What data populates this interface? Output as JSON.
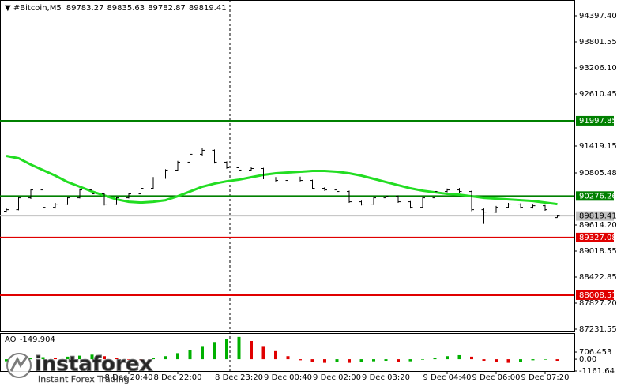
{
  "chart_data": {
    "type": "ohlc",
    "symbol": "#Bitcoin,M5",
    "header_values": [
      89783.27,
      89835.63,
      89782.87,
      89819.41
    ],
    "categories": [
      null,
      null,
      null,
      null,
      null,
      null,
      null,
      null,
      null,
      null,
      "8 Dec 20:40",
      null,
      null,
      null,
      "8 Dec 22:00",
      null,
      null,
      null,
      null,
      "8 Dec 23:20",
      null,
      null,
      null,
      "9 Dec 00:40",
      null,
      null,
      null,
      "9 Dec 02:00",
      null,
      null,
      null,
      "9 Dec 03:20",
      null,
      null,
      null,
      null,
      "9 Dec 04:40",
      null,
      null,
      null,
      "9 Dec 06:00",
      null,
      null,
      null,
      "9 Dec 07:20",
      null
    ],
    "open": [
      89930,
      89964,
      90235,
      90416,
      90018,
      90091,
      90235,
      90416,
      90326,
      90091,
      90235,
      90326,
      90453,
      90688,
      90869,
      91050,
      91231,
      91321,
      91050,
      90923,
      90869,
      90905,
      90688,
      90633,
      90688,
      90633,
      90453,
      90416,
      90380,
      90145,
      90091,
      90235,
      90272,
      90145,
      90018,
      90235,
      90380,
      90416,
      90380,
      89964,
      89910,
      90018,
      90091,
      90018,
      90054,
      89783.27
    ],
    "high": [
      89990,
      90260,
      90440,
      90430,
      90120,
      90260,
      90450,
      90430,
      90340,
      90250,
      90350,
      90470,
      90710,
      90890,
      91080,
      91260,
      91380,
      91340,
      91070,
      90950,
      90940,
      90920,
      90710,
      90710,
      90720,
      90650,
      90480,
      90440,
      90400,
      90170,
      90260,
      90300,
      90290,
      90160,
      90260,
      90400,
      90450,
      90460,
      90400,
      89990,
      90050,
      90120,
      90110,
      90080,
      90070,
      89835.63
    ],
    "low": [
      89900,
      89950,
      90210,
      89990,
      89990,
      90070,
      90220,
      90300,
      90060,
      90070,
      90220,
      90310,
      90440,
      90670,
      90850,
      91030,
      91200,
      91020,
      90900,
      90850,
      90850,
      90660,
      90610,
      90610,
      90610,
      90430,
      90390,
      90360,
      90120,
      90060,
      90070,
      90210,
      90120,
      89990,
      90000,
      90210,
      90360,
      90350,
      89930,
      89640,
      89890,
      90000,
      89990,
      89990,
      89940,
      89782.87
    ],
    "close": [
      89964,
      90235,
      90416,
      90018,
      90091,
      90235,
      90416,
      90326,
      90091,
      90235,
      90326,
      90453,
      90688,
      90869,
      91050,
      91231,
      91321,
      91050,
      90923,
      90869,
      90905,
      90688,
      90633,
      90688,
      90633,
      90453,
      90416,
      90380,
      90145,
      90091,
      90235,
      90272,
      90145,
      90018,
      90235,
      90380,
      90416,
      90380,
      89964,
      89910,
      90018,
      90091,
      90018,
      90054,
      89964,
      89819.41
    ],
    "bar_color": "#000000",
    "ma": {
      "color": "#22dd22",
      "values": [
        91194,
        91140,
        90995,
        90869,
        90742,
        90597,
        90489,
        90380,
        90290,
        90199,
        90145,
        90127,
        90145,
        90181,
        90272,
        90380,
        90489,
        90561,
        90615,
        90651,
        90706,
        90760,
        90796,
        90814,
        90832,
        90850,
        90850,
        90832,
        90796,
        90742,
        90670,
        90597,
        90525,
        90453,
        90398,
        90362,
        90326,
        90308,
        90272,
        90235,
        90217,
        90199,
        90181,
        90163,
        90127,
        90091
      ]
    },
    "levels": [
      {
        "value": 91997.85,
        "color": "#008000",
        "text_color": "#ffffff"
      },
      {
        "value": 90276.26,
        "color": "#008000",
        "text_color": "#ffffff"
      },
      {
        "value": 89819.41,
        "color": "#c0c0c0",
        "text_color": "#000000"
      },
      {
        "value": 89327.08,
        "color": "#e00000",
        "text_color": "#ffffff"
      },
      {
        "value": 88008.51,
        "color": "#e00000",
        "text_color": "#ffffff"
      }
    ],
    "ylim": [
      87177.4,
      94758.4
    ],
    "yticks": [
      {
        "value": 94397.4,
        "label": "94397.40"
      },
      93801.55,
      {
        "value": 93206.1,
        "label": "93206.10"
      },
      92610.45,
      91419.15,
      90805.48,
      {
        "value": 89614.2,
        "label": "89614.20"
      },
      89018.55,
      88422.85,
      {
        "value": 87827.2,
        "label": "87827.20"
      },
      87231.55
    ],
    "indicator": {
      "name": "AO",
      "value": -149.904,
      "values": [
        -200,
        -50,
        100,
        200,
        150,
        250,
        350,
        450,
        300,
        150,
        -50,
        -100,
        100,
        300,
        600,
        900,
        1300,
        1700,
        2000,
        2200,
        1800,
        1300,
        800,
        300,
        -100,
        -250,
        -350,
        -300,
        -350,
        -300,
        -200,
        -150,
        -250,
        -200,
        -50,
        150,
        300,
        400,
        250,
        -150,
        -300,
        -350,
        -250,
        -100,
        -50,
        -149.904
      ],
      "ylim": [
        -1161.64,
        2500
      ],
      "yticks": [
        706.453,
        {
          "value": 0,
          "label": "0.00"
        },
        -1161.64
      ],
      "up_color": "#00b000",
      "down_color": "#e00000"
    },
    "watermark": {
      "brand": "instaforex",
      "tagline": "Instant Forex Trading"
    }
  }
}
